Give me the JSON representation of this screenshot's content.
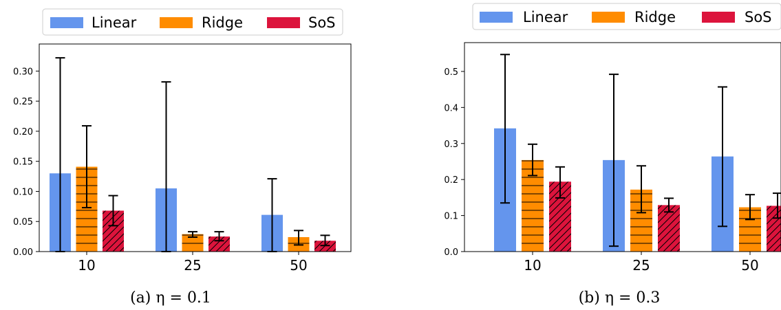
{
  "chart_data": [
    {
      "type": "bar",
      "categories": [
        "10",
        "25",
        "50"
      ],
      "series": [
        {
          "name": "Linear",
          "color": "#6495ED",
          "hatch": "none",
          "values": [
            0.13,
            0.105,
            0.061
          ],
          "err_low": [
            0.0,
            0.0,
            0.0
          ],
          "err_high": [
            0.322,
            0.282,
            0.121
          ]
        },
        {
          "name": "Ridge",
          "color": "#FF8C00",
          "hatch": "horizontal",
          "values": [
            0.141,
            0.029,
            0.024
          ],
          "err_low": [
            0.073,
            0.024,
            0.011
          ],
          "err_high": [
            0.209,
            0.033,
            0.035
          ]
        },
        {
          "name": "SoS",
          "color": "#DC143C",
          "hatch": "diagonal",
          "values": [
            0.068,
            0.025,
            0.018
          ],
          "err_low": [
            0.043,
            0.018,
            0.01
          ],
          "err_high": [
            0.093,
            0.033,
            0.027
          ]
        }
      ],
      "yticks": [
        "0.00",
        "0.05",
        "0.10",
        "0.15",
        "0.20",
        "0.25",
        "0.30"
      ],
      "ylim": [
        0,
        0.345
      ],
      "legend": "top",
      "caption": "(a) η = 0.1"
    },
    {
      "type": "bar",
      "categories": [
        "10",
        "25",
        "50"
      ],
      "series": [
        {
          "name": "Linear",
          "color": "#6495ED",
          "hatch": "none",
          "values": [
            0.342,
            0.254,
            0.264
          ],
          "err_low": [
            0.135,
            0.015,
            0.07
          ],
          "err_high": [
            0.547,
            0.492,
            0.457
          ]
        },
        {
          "name": "Ridge",
          "color": "#FF8C00",
          "hatch": "horizontal",
          "values": [
            0.254,
            0.172,
            0.123
          ],
          "err_low": [
            0.211,
            0.108,
            0.089
          ],
          "err_high": [
            0.298,
            0.238,
            0.158
          ]
        },
        {
          "name": "SoS",
          "color": "#DC143C",
          "hatch": "diagonal",
          "values": [
            0.194,
            0.129,
            0.127
          ],
          "err_low": [
            0.149,
            0.11,
            0.093
          ],
          "err_high": [
            0.235,
            0.148,
            0.162
          ]
        }
      ],
      "yticks": [
        "0.0",
        "0.1",
        "0.2",
        "0.3",
        "0.4",
        "0.5"
      ],
      "ylim": [
        0,
        0.58
      ],
      "legend": "top",
      "caption": "(b) η = 0.3"
    }
  ]
}
